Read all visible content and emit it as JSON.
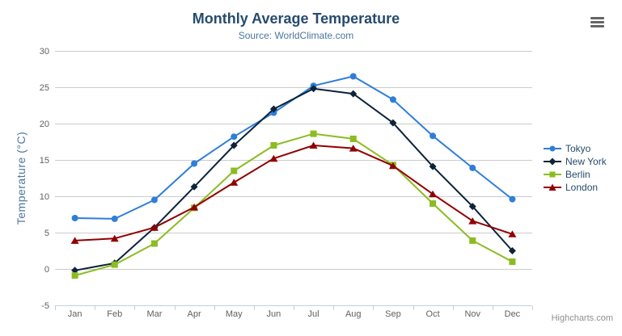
{
  "header": {
    "title": "Monthly Average Temperature",
    "subtitle": "Source: WorldClimate.com"
  },
  "credits_label": "Highcharts.com",
  "menu_icon": "hamburger-icon",
  "colors": {
    "background": "#ffffff",
    "title": "#274b6d",
    "subtitle": "#4d759e",
    "axis_label": "#606060",
    "axis_title": "#4d759e",
    "grid": "#cccccc",
    "axis_line": "#c0d0e0",
    "legend_text": "#274b6d",
    "credits": "#909090",
    "menu": "#666666"
  },
  "chart_data": {
    "type": "line",
    "title": "Monthly Average Temperature",
    "subtitle": "Source: WorldClimate.com",
    "categories": [
      "Jan",
      "Feb",
      "Mar",
      "Apr",
      "May",
      "Jun",
      "Jul",
      "Aug",
      "Sep",
      "Oct",
      "Nov",
      "Dec"
    ],
    "series": [
      {
        "name": "Tokyo",
        "color": "#2f7ed8",
        "marker": "circle",
        "values": [
          7.0,
          6.9,
          9.5,
          14.5,
          18.2,
          21.5,
          25.2,
          26.5,
          23.3,
          18.3,
          13.9,
          9.6
        ]
      },
      {
        "name": "New York",
        "color": "#0d233a",
        "marker": "diamond",
        "values": [
          -0.2,
          0.8,
          5.7,
          11.3,
          17.0,
          22.0,
          24.8,
          24.1,
          20.1,
          14.1,
          8.6,
          2.5
        ]
      },
      {
        "name": "Berlin",
        "color": "#8bbc21",
        "marker": "square",
        "values": [
          -0.9,
          0.6,
          3.5,
          8.4,
          13.5,
          17.0,
          18.6,
          17.9,
          14.3,
          9.0,
          3.9,
          1.0
        ]
      },
      {
        "name": "London",
        "color": "#910000",
        "marker": "triangle",
        "values": [
          3.9,
          4.2,
          5.7,
          8.5,
          11.9,
          15.2,
          17.0,
          16.6,
          14.2,
          10.3,
          6.6,
          4.8
        ]
      }
    ],
    "xlabel": "",
    "ylabel": "Temperature (°C)",
    "ylim": [
      -5,
      30
    ],
    "yticks": [
      -5,
      0,
      5,
      10,
      15,
      20,
      25,
      30
    ],
    "grid": true,
    "legend_position": "right"
  }
}
